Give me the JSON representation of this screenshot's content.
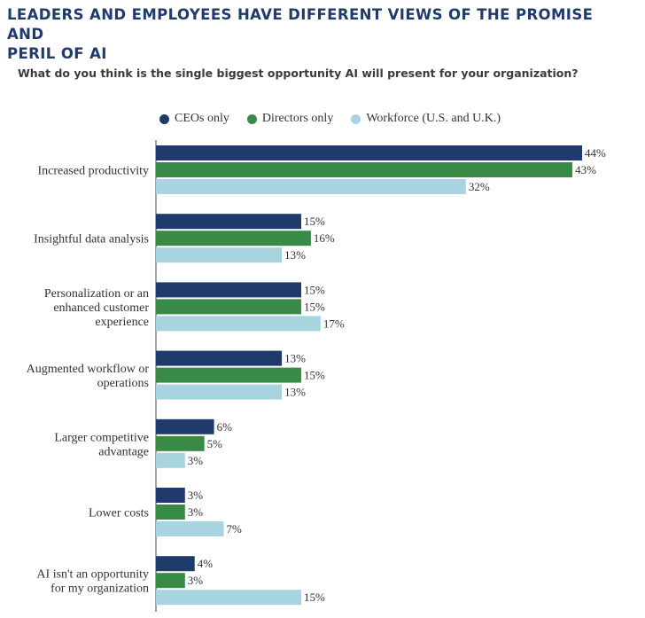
{
  "title_line1": "LEADERS AND EMPLOYEES HAVE DIFFERENT VIEWS OF THE PROMISE AND",
  "title_line2": "PERIL OF AI",
  "subtitle": "What do you think is the single biggest opportunity AI will present for your organization?",
  "chart_data": {
    "type": "bar",
    "orientation": "horizontal",
    "title": "LEADERS AND EMPLOYEES HAVE DIFFERENT VIEWS OF THE PROMISE AND PERIL OF AI",
    "subtitle": "What do you think is the single biggest opportunity AI will present for your organization?",
    "categories": [
      [
        "Increased productivity"
      ],
      [
        "Insightful data analysis"
      ],
      [
        "Personalization or an",
        "enhanced customer",
        "experience"
      ],
      [
        "Augmented workflow or",
        "operations"
      ],
      [
        "Larger competitive",
        "advantage"
      ],
      [
        "Lower costs"
      ],
      [
        "AI isn't an opportunity",
        "for my organization"
      ]
    ],
    "series": [
      {
        "name": "CEOs only",
        "color": "#1f3b6b",
        "values": [
          44,
          15,
          15,
          13,
          6,
          3,
          4
        ]
      },
      {
        "name": "Directors only",
        "color": "#3a8a47",
        "values": [
          43,
          16,
          15,
          15,
          5,
          3,
          3
        ]
      },
      {
        "name": "Workforce (U.S. and U.K.)",
        "color": "#a8d4df",
        "values": [
          32,
          13,
          17,
          13,
          3,
          7,
          15
        ]
      }
    ],
    "value_suffix": "%",
    "xlim": [
      0,
      44
    ],
    "legend_position": "top",
    "grid": false
  }
}
